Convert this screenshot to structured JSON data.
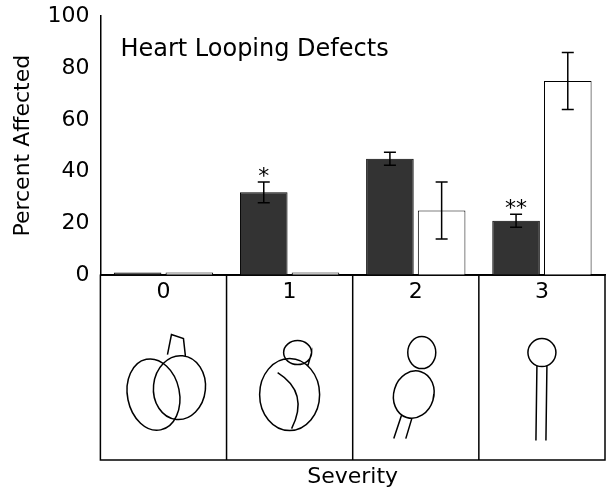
{
  "chart_data": {
    "type": "bar",
    "title": "Heart Looping Defects",
    "categories": [
      "0",
      "1",
      "2",
      "3"
    ],
    "series": [
      {
        "color": "#333333",
        "values": [
          1,
          32,
          45,
          21
        ],
        "errors": [
          0,
          4,
          2.5,
          2.5
        ]
      },
      {
        "color": "#ffffff",
        "values": [
          1,
          1,
          25,
          75
        ],
        "errors": [
          0,
          0,
          11,
          11
        ]
      }
    ],
    "x_label": "Severity",
    "y_label": "Percent Affected",
    "ylim": [
      0,
      100
    ],
    "yticks": [
      0,
      20,
      40,
      60,
      80,
      100
    ],
    "grid": false,
    "annotations": [
      {
        "text": "*",
        "category": "1",
        "series": 0
      },
      {
        "text": "**",
        "category": "3",
        "series": 0
      }
    ]
  }
}
